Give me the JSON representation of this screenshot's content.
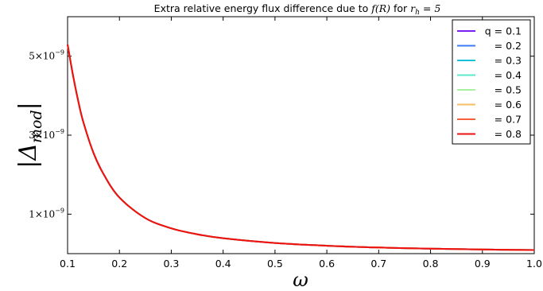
{
  "chart_data": {
    "type": "line",
    "title_prefix": "Extra relative energy flux difference due to ",
    "title_math_1": "f(R)",
    "title_mid": " for ",
    "title_math_2_base": "r",
    "title_math_2_sub": "h",
    "title_math_2_tail": " = 5",
    "xlabel": "ω",
    "ylabel_base": "|Δ",
    "ylabel_sub": "mod",
    "ylabel_tail": "|",
    "xlim": [
      0.1,
      1.0
    ],
    "ylim": [
      0,
      6e-09
    ],
    "x_ticks": [
      "0.1",
      "0.2",
      "0.3",
      "0.4",
      "0.5",
      "0.6",
      "0.7",
      "0.8",
      "0.9",
      "1.0"
    ],
    "y_ticks": [
      {
        "value": 1e-09,
        "mantissa": "1×10",
        "exponent": "−9"
      },
      {
        "value": 3e-09,
        "mantissa": "3×10",
        "exponent": "−9"
      },
      {
        "value": 5e-09,
        "mantissa": "5×10",
        "exponent": "−9"
      }
    ],
    "legend_position": "top-right",
    "x": [
      0.1,
      0.11,
      0.12,
      0.13,
      0.15,
      0.17,
      0.2,
      0.25,
      0.3,
      0.35,
      0.4,
      0.5,
      0.6,
      0.7,
      0.8,
      0.9,
      1.0
    ],
    "series": [
      {
        "name": "q = 0.1",
        "color": "#7a1ff2",
        "values": [
          5.3e-09,
          4.55e-09,
          3.9e-09,
          3.35e-09,
          2.55e-09,
          2e-09,
          1.42e-09,
          9e-10,
          6.4e-10,
          4.9e-10,
          3.9e-10,
          2.7e-10,
          2e-10,
          1.55e-10,
          1.25e-10,
          1.05e-10,
          9e-11
        ]
      },
      {
        "name": "= 0.2",
        "color": "#3d7cf4",
        "values": [
          5.3e-09,
          4.55e-09,
          3.9e-09,
          3.35e-09,
          2.55e-09,
          2e-09,
          1.42e-09,
          9e-10,
          6.4e-10,
          4.9e-10,
          3.9e-10,
          2.7e-10,
          2e-10,
          1.55e-10,
          1.25e-10,
          1.05e-10,
          9e-11
        ]
      },
      {
        "name": "= 0.3",
        "color": "#16c0d8",
        "values": [
          5.3e-09,
          4.55e-09,
          3.9e-09,
          3.35e-09,
          2.55e-09,
          2e-09,
          1.42e-09,
          9e-10,
          6.4e-10,
          4.9e-10,
          3.9e-10,
          2.7e-10,
          2e-10,
          1.55e-10,
          1.25e-10,
          1.05e-10,
          9e-11
        ]
      },
      {
        "name": "= 0.4",
        "color": "#5be8cc",
        "values": [
          5.3e-09,
          4.55e-09,
          3.9e-09,
          3.35e-09,
          2.55e-09,
          2e-09,
          1.42e-09,
          9e-10,
          6.4e-10,
          4.9e-10,
          3.9e-10,
          2.7e-10,
          2e-10,
          1.55e-10,
          1.25e-10,
          1.05e-10,
          9e-11
        ]
      },
      {
        "name": "= 0.5",
        "color": "#a6f29f",
        "values": [
          5.3e-09,
          4.55e-09,
          3.9e-09,
          3.35e-09,
          2.55e-09,
          2e-09,
          1.42e-09,
          9e-10,
          6.4e-10,
          4.9e-10,
          3.9e-10,
          2.7e-10,
          2e-10,
          1.55e-10,
          1.25e-10,
          1.05e-10,
          9e-11
        ]
      },
      {
        "name": "= 0.6",
        "color": "#f6bd63",
        "values": [
          5.3e-09,
          4.55e-09,
          3.9e-09,
          3.35e-09,
          2.55e-09,
          2e-09,
          1.42e-09,
          9e-10,
          6.4e-10,
          4.9e-10,
          3.9e-10,
          2.7e-10,
          2e-10,
          1.55e-10,
          1.25e-10,
          1.05e-10,
          9e-11
        ]
      },
      {
        "name": "= 0.7",
        "color": "#f5613a",
        "values": [
          5.3e-09,
          4.55e-09,
          3.9e-09,
          3.35e-09,
          2.55e-09,
          2e-09,
          1.42e-09,
          9e-10,
          6.4e-10,
          4.9e-10,
          3.9e-10,
          2.7e-10,
          2e-10,
          1.55e-10,
          1.25e-10,
          1.05e-10,
          9e-11
        ]
      },
      {
        "name": "= 0.8",
        "color": "#ee1111",
        "values": [
          5.3e-09,
          4.55e-09,
          3.9e-09,
          3.35e-09,
          2.55e-09,
          2e-09,
          1.42e-09,
          9e-10,
          6.4e-10,
          4.9e-10,
          3.9e-10,
          2.7e-10,
          2e-10,
          1.55e-10,
          1.25e-10,
          1.05e-10,
          9e-11
        ]
      }
    ]
  }
}
